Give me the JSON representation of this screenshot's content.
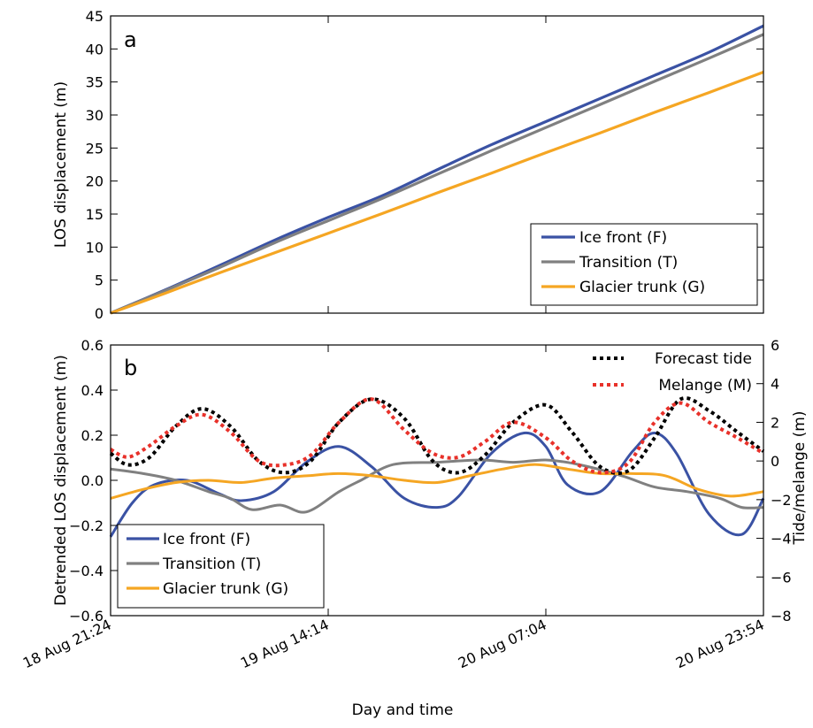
{
  "chart_data": [
    {
      "panel": "a",
      "type": "line",
      "ylabel": "LOS displacement (m)",
      "xlim": [
        0,
        3
      ],
      "ylim": [
        0,
        45
      ],
      "yticks": [
        0,
        5,
        10,
        15,
        20,
        25,
        30,
        35,
        40,
        45
      ],
      "grid": false,
      "legend_position": "bottom-right",
      "series": [
        {
          "name": "Ice front (F)",
          "color": "#3a52a4",
          "x": [
            0,
            0.25,
            0.5,
            0.75,
            1.0,
            1.25,
            1.5,
            1.75,
            2.0,
            2.25,
            2.5,
            2.75,
            3.0
          ],
          "y": [
            0,
            3.5,
            7.2,
            11.0,
            14.5,
            17.8,
            21.7,
            25.5,
            29.0,
            32.5,
            36.0,
            39.5,
            43.5
          ]
        },
        {
          "name": "Transition (T)",
          "color": "#808080",
          "x": [
            0,
            0.25,
            0.5,
            0.75,
            1.0,
            1.25,
            1.5,
            1.75,
            2.0,
            2.25,
            2.5,
            2.75,
            3.0
          ],
          "y": [
            0,
            3.4,
            6.9,
            10.6,
            14.0,
            17.4,
            21.0,
            24.6,
            28.1,
            31.6,
            35.1,
            38.6,
            42.2
          ]
        },
        {
          "name": "Glacier trunk (G)",
          "color": "#f5a623",
          "x": [
            0,
            0.25,
            0.5,
            0.75,
            1.0,
            1.25,
            1.5,
            1.75,
            2.0,
            2.25,
            2.5,
            2.75,
            3.0
          ],
          "y": [
            0,
            3.0,
            6.1,
            9.1,
            12.1,
            15.1,
            18.2,
            21.2,
            24.3,
            27.3,
            30.4,
            33.4,
            36.5
          ]
        }
      ]
    },
    {
      "panel": "b",
      "type": "line",
      "xlabel": "Day and time",
      "ylabel": "Detrended LOS displacement (m)",
      "y2label": "Tide/melange (m)",
      "xlim": [
        0,
        3
      ],
      "xtick_labels": [
        "18 Aug 21:24",
        "19 Aug 14:14",
        "20 Aug 07:04",
        "20 Aug 23:54"
      ],
      "ylim": [
        -0.6,
        0.6
      ],
      "yticks": [
        -0.6,
        -0.4,
        -0.2,
        0.0,
        0.2,
        0.4,
        0.6
      ],
      "ytick_labels": [
        "−0.6",
        "−0.4",
        "−0.2",
        "0.0",
        "0.2",
        "0.4",
        "0.6"
      ],
      "y2lim": [
        -8,
        6
      ],
      "y2ticks": [
        -8,
        -6,
        -4,
        -2,
        0,
        2,
        4,
        6
      ],
      "y2tick_labels": [
        "−8",
        "−6",
        "−4",
        "−2",
        "0",
        "2",
        "4",
        "6"
      ],
      "grid": false,
      "legend_left_position": "bottom-left",
      "legend_right_position": "top-right",
      "series": [
        {
          "name": "Ice front (F)",
          "color": "#3a52a4",
          "style": "solid",
          "axis": "left",
          "x": [
            0,
            0.1,
            0.2,
            0.35,
            0.5,
            0.6,
            0.75,
            0.9,
            1.05,
            1.2,
            1.35,
            1.5,
            1.6,
            1.75,
            1.9,
            2.0,
            2.1,
            2.25,
            2.4,
            2.5,
            2.6,
            2.75,
            2.9,
            3.0
          ],
          "y": [
            -0.25,
            -0.1,
            -0.02,
            0.0,
            -0.06,
            -0.09,
            -0.05,
            0.08,
            0.15,
            0.06,
            -0.08,
            -0.12,
            -0.07,
            0.12,
            0.21,
            0.15,
            -0.02,
            -0.05,
            0.13,
            0.21,
            0.12,
            -0.15,
            -0.24,
            -0.08
          ]
        },
        {
          "name": "Transition (T)",
          "color": "#808080",
          "style": "solid",
          "axis": "left",
          "x": [
            0,
            0.15,
            0.3,
            0.45,
            0.55,
            0.65,
            0.78,
            0.9,
            1.05,
            1.15,
            1.3,
            1.5,
            1.7,
            1.85,
            2.0,
            2.15,
            2.35,
            2.5,
            2.65,
            2.8,
            2.9,
            3.0
          ],
          "y": [
            0.05,
            0.03,
            0.0,
            -0.05,
            -0.08,
            -0.13,
            -0.11,
            -0.14,
            -0.05,
            0.0,
            0.07,
            0.08,
            0.09,
            0.08,
            0.09,
            0.07,
            0.02,
            -0.03,
            -0.05,
            -0.08,
            -0.12,
            -0.12
          ]
        },
        {
          "name": "Glacier trunk (G)",
          "color": "#f5a623",
          "style": "solid",
          "axis": "left",
          "x": [
            0,
            0.15,
            0.3,
            0.45,
            0.6,
            0.75,
            0.9,
            1.05,
            1.2,
            1.35,
            1.5,
            1.65,
            1.8,
            1.95,
            2.1,
            2.25,
            2.4,
            2.55,
            2.7,
            2.85,
            3.0
          ],
          "y": [
            -0.08,
            -0.04,
            -0.01,
            0.0,
            -0.01,
            0.01,
            0.02,
            0.03,
            0.02,
            0.0,
            -0.01,
            0.02,
            0.05,
            0.07,
            0.05,
            0.03,
            0.03,
            0.02,
            -0.04,
            -0.07,
            -0.05
          ]
        },
        {
          "name": "Forecast tide",
          "color": "#000000",
          "style": "dotted",
          "axis": "right",
          "x": [
            0,
            0.08,
            0.18,
            0.3,
            0.42,
            0.55,
            0.68,
            0.8,
            0.92,
            1.05,
            1.2,
            1.35,
            1.48,
            1.6,
            1.72,
            1.85,
            2.0,
            2.12,
            2.25,
            2.38,
            2.5,
            2.62,
            2.75,
            2.88,
            3.0
          ],
          "y": [
            0.4,
            -0.2,
            0.2,
            1.8,
            2.7,
            1.8,
            0.0,
            -0.6,
            0.0,
            2.0,
            3.2,
            2.2,
            0.0,
            -0.6,
            0.3,
            2.0,
            2.9,
            1.5,
            -0.3,
            -0.5,
            1.2,
            3.2,
            2.6,
            1.5,
            0.5
          ]
        },
        {
          "name": "Melange (M)",
          "color": "#e8312a",
          "style": "dotted",
          "axis": "right",
          "x": [
            0,
            0.08,
            0.18,
            0.3,
            0.42,
            0.55,
            0.68,
            0.8,
            0.92,
            1.05,
            1.2,
            1.35,
            1.48,
            1.6,
            1.72,
            1.85,
            2.0,
            2.12,
            2.25,
            2.38,
            2.5,
            2.62,
            2.75,
            2.88,
            3.0
          ],
          "y": [
            0.6,
            0.2,
            0.8,
            1.8,
            2.4,
            1.5,
            0.0,
            -0.2,
            0.3,
            2.0,
            3.2,
            1.6,
            0.4,
            0.2,
            1.0,
            2.0,
            1.2,
            0.0,
            -0.6,
            -0.1,
            2.0,
            3.0,
            2.0,
            1.2,
            0.4
          ]
        }
      ]
    }
  ]
}
